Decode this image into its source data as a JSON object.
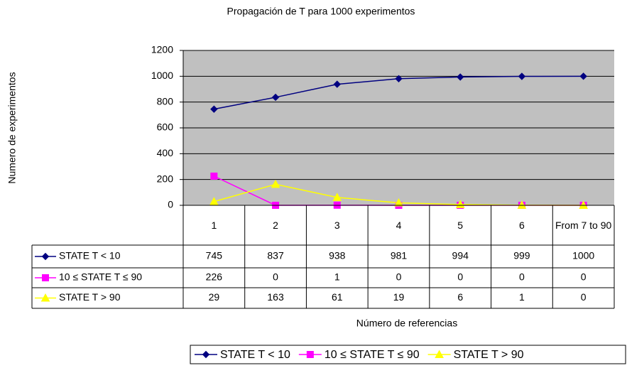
{
  "chart_data": {
    "type": "line",
    "title": "Propagación de T para 1000 experimentos",
    "x_label": "Número de referencias",
    "y_label": "Numero de experimentos",
    "categories": [
      "1",
      "2",
      "3",
      "4",
      "5",
      "6",
      "From 7 to 90"
    ],
    "series": [
      {
        "name": "STATE T < 10",
        "color": "#000080",
        "marker": "diamond",
        "values": [
          745,
          837,
          938,
          981,
          994,
          999,
          1000
        ]
      },
      {
        "name": "10 ≤ STATE T ≤ 90",
        "color": "#ff00ff",
        "marker": "square",
        "values": [
          226,
          0,
          1,
          0,
          0,
          0,
          0
        ]
      },
      {
        "name": "STATE T > 90",
        "color": "#ffff00",
        "marker": "triangle",
        "values": [
          29,
          163,
          61,
          19,
          6,
          1,
          0
        ]
      }
    ],
    "ylim": [
      0,
      1200
    ],
    "yticks": [
      0,
      200,
      400,
      600,
      800,
      1000,
      1200
    ],
    "grid": true,
    "plot_background": "#c0c0c0",
    "legend": "bottom",
    "data_table": true
  }
}
